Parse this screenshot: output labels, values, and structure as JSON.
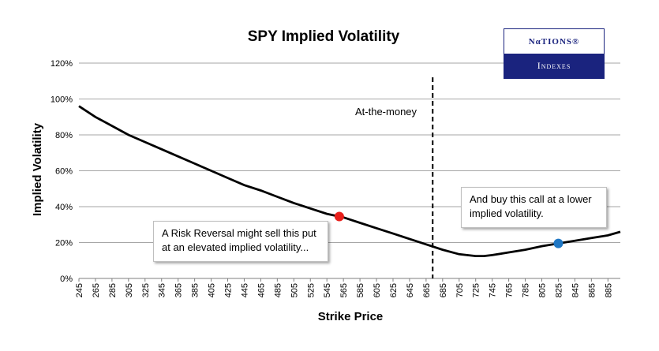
{
  "logo": {
    "top_text": "NαTIONS®",
    "bottom_text": "Indexes"
  },
  "colors": {
    "line": "#000000",
    "put_marker": "#e8201c",
    "call_marker": "#1f77c4",
    "gridline": "#a6a6a6",
    "logo_navy": "#1a237e"
  },
  "annotations": {
    "atm_label": "At-the-money",
    "put_text": "A Risk Reversal might sell this put at an elevated implied volatility...",
    "call_text": "And buy this call at a lower implied volatility."
  },
  "chart_data": {
    "type": "line",
    "title": "SPY Implied Volatility",
    "xlabel": "Strike Price",
    "ylabel": "Implied Volatility",
    "ylim": [
      0,
      120
    ],
    "xlim": [
      245,
      900
    ],
    "y_ticks": [
      "0%",
      "20%",
      "40%",
      "60%",
      "80%",
      "100%",
      "120%"
    ],
    "x_ticks": [
      "245",
      "265",
      "285",
      "305",
      "325",
      "345",
      "365",
      "385",
      "405",
      "425",
      "445",
      "465",
      "485",
      "505",
      "525",
      "545",
      "565",
      "585",
      "605",
      "625",
      "645",
      "665",
      "685",
      "705",
      "725",
      "745",
      "765",
      "785",
      "805",
      "825",
      "845",
      "865",
      "885"
    ],
    "grid": true,
    "legend": "none",
    "series": [
      {
        "x": [
          245,
          265,
          285,
          305,
          325,
          345,
          365,
          385,
          405,
          425,
          445,
          465,
          485,
          505,
          525,
          545,
          560,
          565,
          585,
          605,
          625,
          645,
          665,
          685,
          705,
          725,
          735,
          745,
          765,
          785,
          805,
          825,
          845,
          865,
          885,
          900
        ],
        "values": [
          96,
          90,
          85,
          80,
          76,
          72,
          68,
          64,
          60,
          56,
          52,
          49,
          45.5,
          42,
          39,
          36,
          34.5,
          34,
          31,
          28,
          25,
          22,
          19,
          16,
          13.5,
          12.5,
          12.5,
          13,
          14.5,
          16,
          18,
          19.5,
          21,
          22.5,
          24,
          26
        ]
      }
    ],
    "markers": [
      {
        "label": "put",
        "x": 560,
        "y": 34.5
      },
      {
        "label": "call",
        "x": 825,
        "y": 19.5
      }
    ],
    "atm_strike": 673
  }
}
